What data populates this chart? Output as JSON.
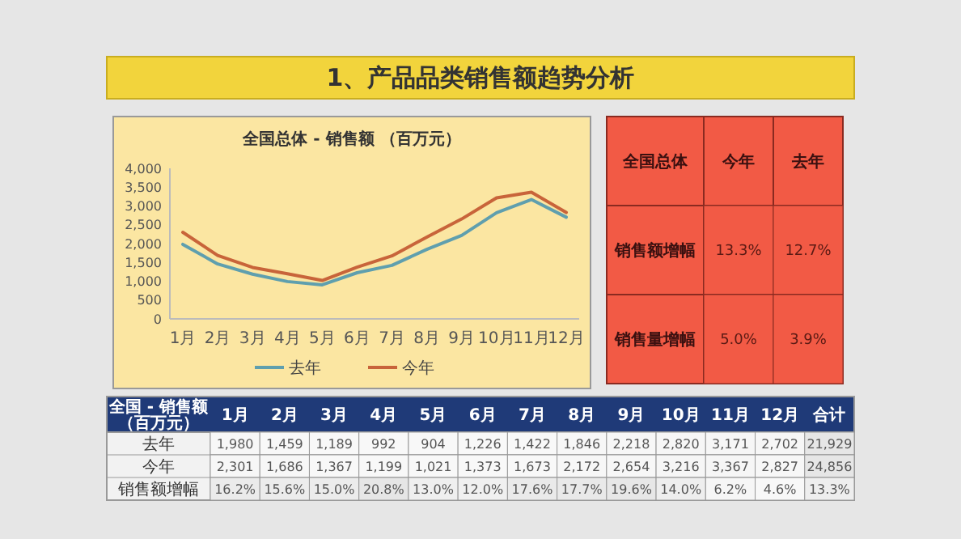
{
  "chart_data": [
    {
      "type": "line",
      "title": "全国总体 - 销售额 （百万元）",
      "categories": [
        "1月",
        "2月",
        "3月",
        "4月",
        "5月",
        "6月",
        "7月",
        "8月",
        "9月",
        "10月",
        "11月",
        "12月"
      ],
      "series": [
        {
          "name": "去年",
          "color": "#5f9fae",
          "values": [
            1980,
            1459,
            1189,
            992,
            904,
            1226,
            1422,
            1846,
            2218,
            2820,
            3171,
            2702
          ]
        },
        {
          "name": "今年",
          "color": "#c8643a",
          "values": [
            2301,
            1686,
            1367,
            1199,
            1021,
            1373,
            1673,
            2172,
            2654,
            3216,
            3367,
            2827
          ]
        }
      ],
      "ylim": [
        0,
        4000
      ],
      "yticks": [
        0,
        500,
        {
          "value": 1000,
          "label": "1,000"
        },
        {
          "value": 1500,
          "label": "1,500"
        },
        {
          "value": 2000,
          "label": "2,000"
        },
        {
          "value": 2500,
          "label": "2,500"
        },
        {
          "value": 3000,
          "label": "3,000"
        },
        {
          "value": 3500,
          "label": "3,500"
        },
        {
          "value": 4000,
          "label": "4,000"
        }
      ],
      "legend": "bottom",
      "grid": false,
      "line_style": "solid",
      "marker": "none",
      "annotations": [
        "1、产品品类销售额趋势分析"
      ]
    },
    {
      "type": "other",
      "title": "全国总体",
      "categories": [
        "今年",
        "去年"
      ],
      "y_categories": [
        "销售额增幅",
        "销售量增幅"
      ],
      "cell_labels": [
        [
          "13.3%",
          "12.7%"
        ],
        [
          "5.0%",
          "3.9%"
        ]
      ]
    },
    {
      "type": "heatmap",
      "title": "全国 - 销售额（百万元）",
      "categories": [
        "1月",
        "2月",
        "3月",
        "4月",
        "5月",
        "6月",
        "7月",
        "8月",
        "9月",
        "10月",
        "11月",
        "12月",
        "合计"
      ],
      "y_categories": [
        "去年",
        "今年",
        "销售额增幅"
      ],
      "cells": [
        [
          1980,
          1459,
          1189,
          992,
          904,
          1226,
          1422,
          1846,
          2218,
          2820,
          3171,
          2702,
          21929
        ],
        [
          2301,
          1686,
          1367,
          1199,
          1021,
          1373,
          1673,
          2172,
          2654,
          3216,
          3367,
          2827,
          24856
        ],
        [
          16.2,
          15.6,
          15.0,
          20.8,
          13.0,
          12.0,
          17.6,
          17.7,
          19.6,
          14.0,
          6.2,
          4.6,
          13.3
        ]
      ],
      "cell_labels": [
        [
          "1,980",
          "1,459",
          "1,189",
          "992",
          "904",
          "1,226",
          "1,422",
          "1,846",
          "2,218",
          "2,820",
          "3,171",
          "2,702",
          "21,929"
        ],
        [
          "2,301",
          "1,686",
          "1,367",
          "1,199",
          "1,021",
          "1,373",
          "1,673",
          "2,172",
          "2,654",
          "3,216",
          "3,367",
          "2,827",
          "24,856"
        ],
        [
          "16.2%",
          "15.6%",
          "15.0%",
          "20.8%",
          "13.0%",
          "12.0%",
          "17.6%",
          "17.7%",
          "19.6%",
          "14.0%",
          "6.2%",
          "4.6%",
          "13.3%"
        ]
      ]
    }
  ]
}
